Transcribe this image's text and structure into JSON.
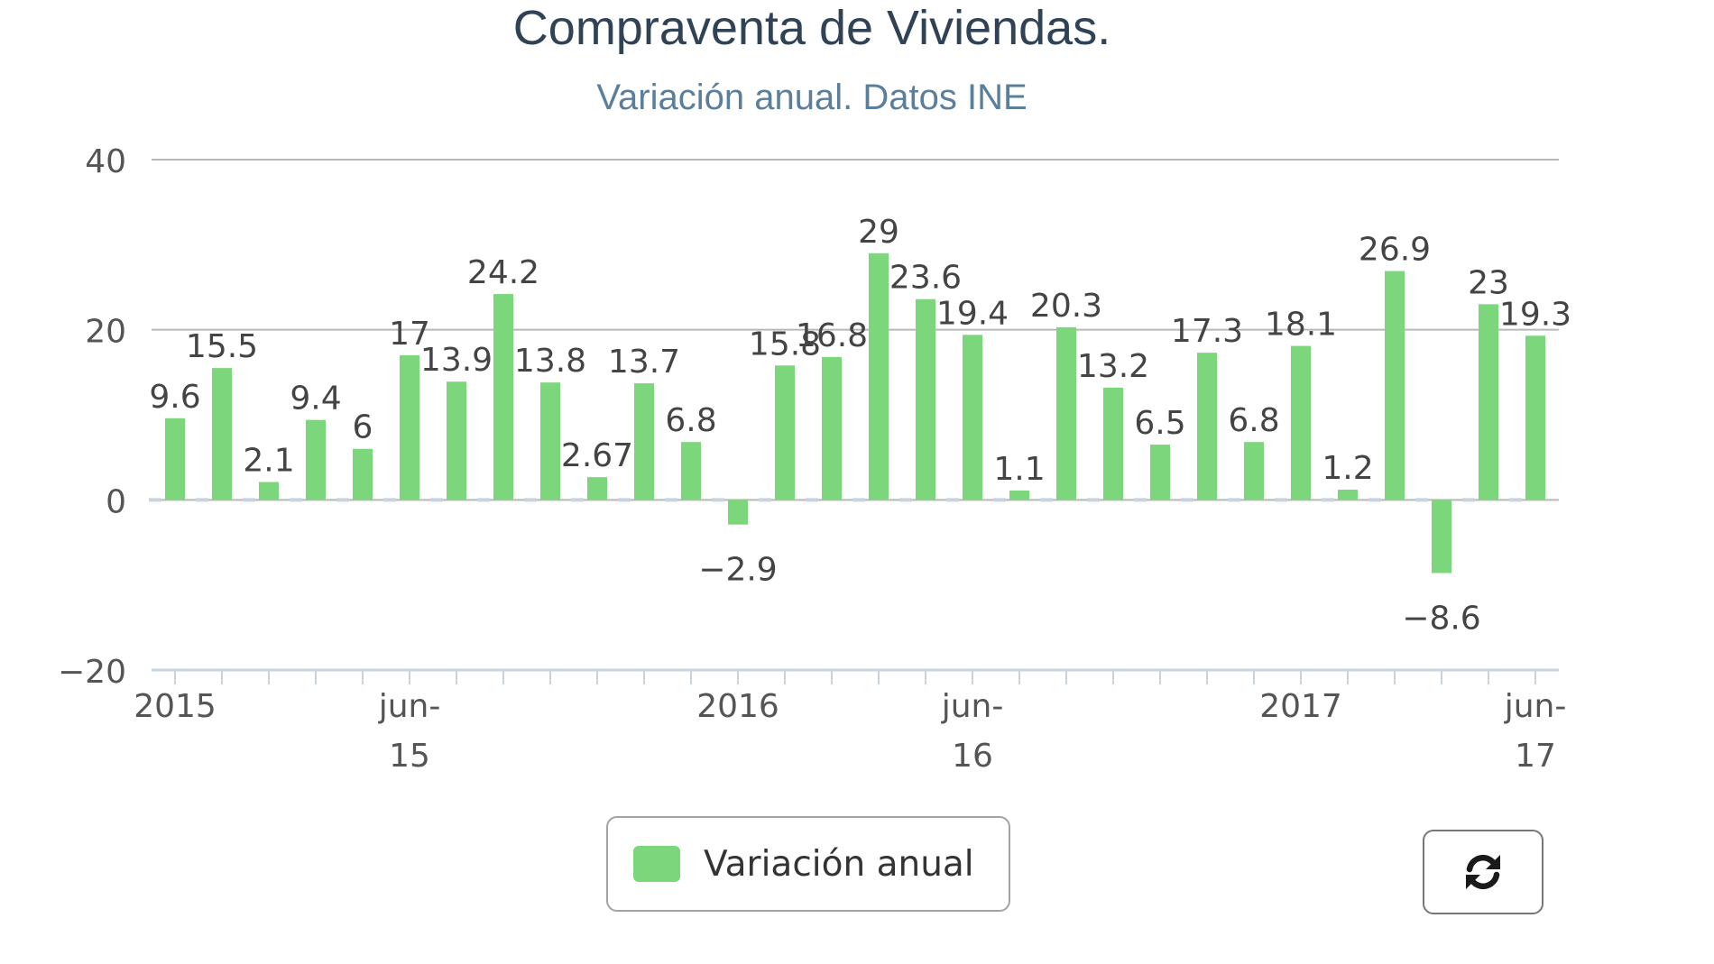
{
  "chart_data": {
    "type": "bar",
    "title": "Compraventa de Viviendas.",
    "subtitle": "Variación anual. Datos INE",
    "ylim": [
      -20,
      40
    ],
    "yticks": [
      "40",
      "20",
      "0",
      "−20"
    ],
    "xlabel": "",
    "ylabel": "",
    "x_tick_labels": [
      {
        "index": 0,
        "lines": [
          "2015"
        ]
      },
      {
        "index": 5,
        "lines": [
          "jun-",
          "15"
        ]
      },
      {
        "index": 12,
        "lines": [
          "2016"
        ]
      },
      {
        "index": 17,
        "lines": [
          "jun-",
          "16"
        ]
      },
      {
        "index": 24,
        "lines": [
          "2017"
        ]
      },
      {
        "index": 29,
        "lines": [
          "jun-",
          "17"
        ]
      }
    ],
    "grid": "horizontal",
    "legend_position": "bottom-center",
    "series": [
      {
        "name": "Variación anual",
        "color": "#7cd67c",
        "values": [
          9.6,
          15.5,
          2.1,
          9.4,
          6,
          17,
          13.9,
          24.2,
          13.8,
          2.67,
          13.7,
          6.8,
          -2.9,
          15.8,
          16.8,
          29,
          23.6,
          19.4,
          1.1,
          20.3,
          13.2,
          6.5,
          17.3,
          6.8,
          18.1,
          1.2,
          26.9,
          -8.6,
          23,
          19.3
        ],
        "labels": [
          "9.6",
          "15.5",
          "2.1",
          "9.4",
          "6",
          "17",
          "13.9",
          "24.2",
          "13.8",
          "2.67",
          "13.7",
          "6.8",
          "−2.9",
          "15.8",
          "16.8",
          "29",
          "23.6",
          "19.4",
          "1.1",
          "20.3",
          "13.2",
          "6.5",
          "17.3",
          "6.8",
          "18.1",
          "1.2",
          "26.9",
          "−8.6",
          "23",
          "19.3"
        ]
      }
    ]
  },
  "legend": {
    "label": "Variación anual",
    "color": "#7cd67c"
  },
  "controls": {
    "refresh_icon": "refresh-icon"
  }
}
